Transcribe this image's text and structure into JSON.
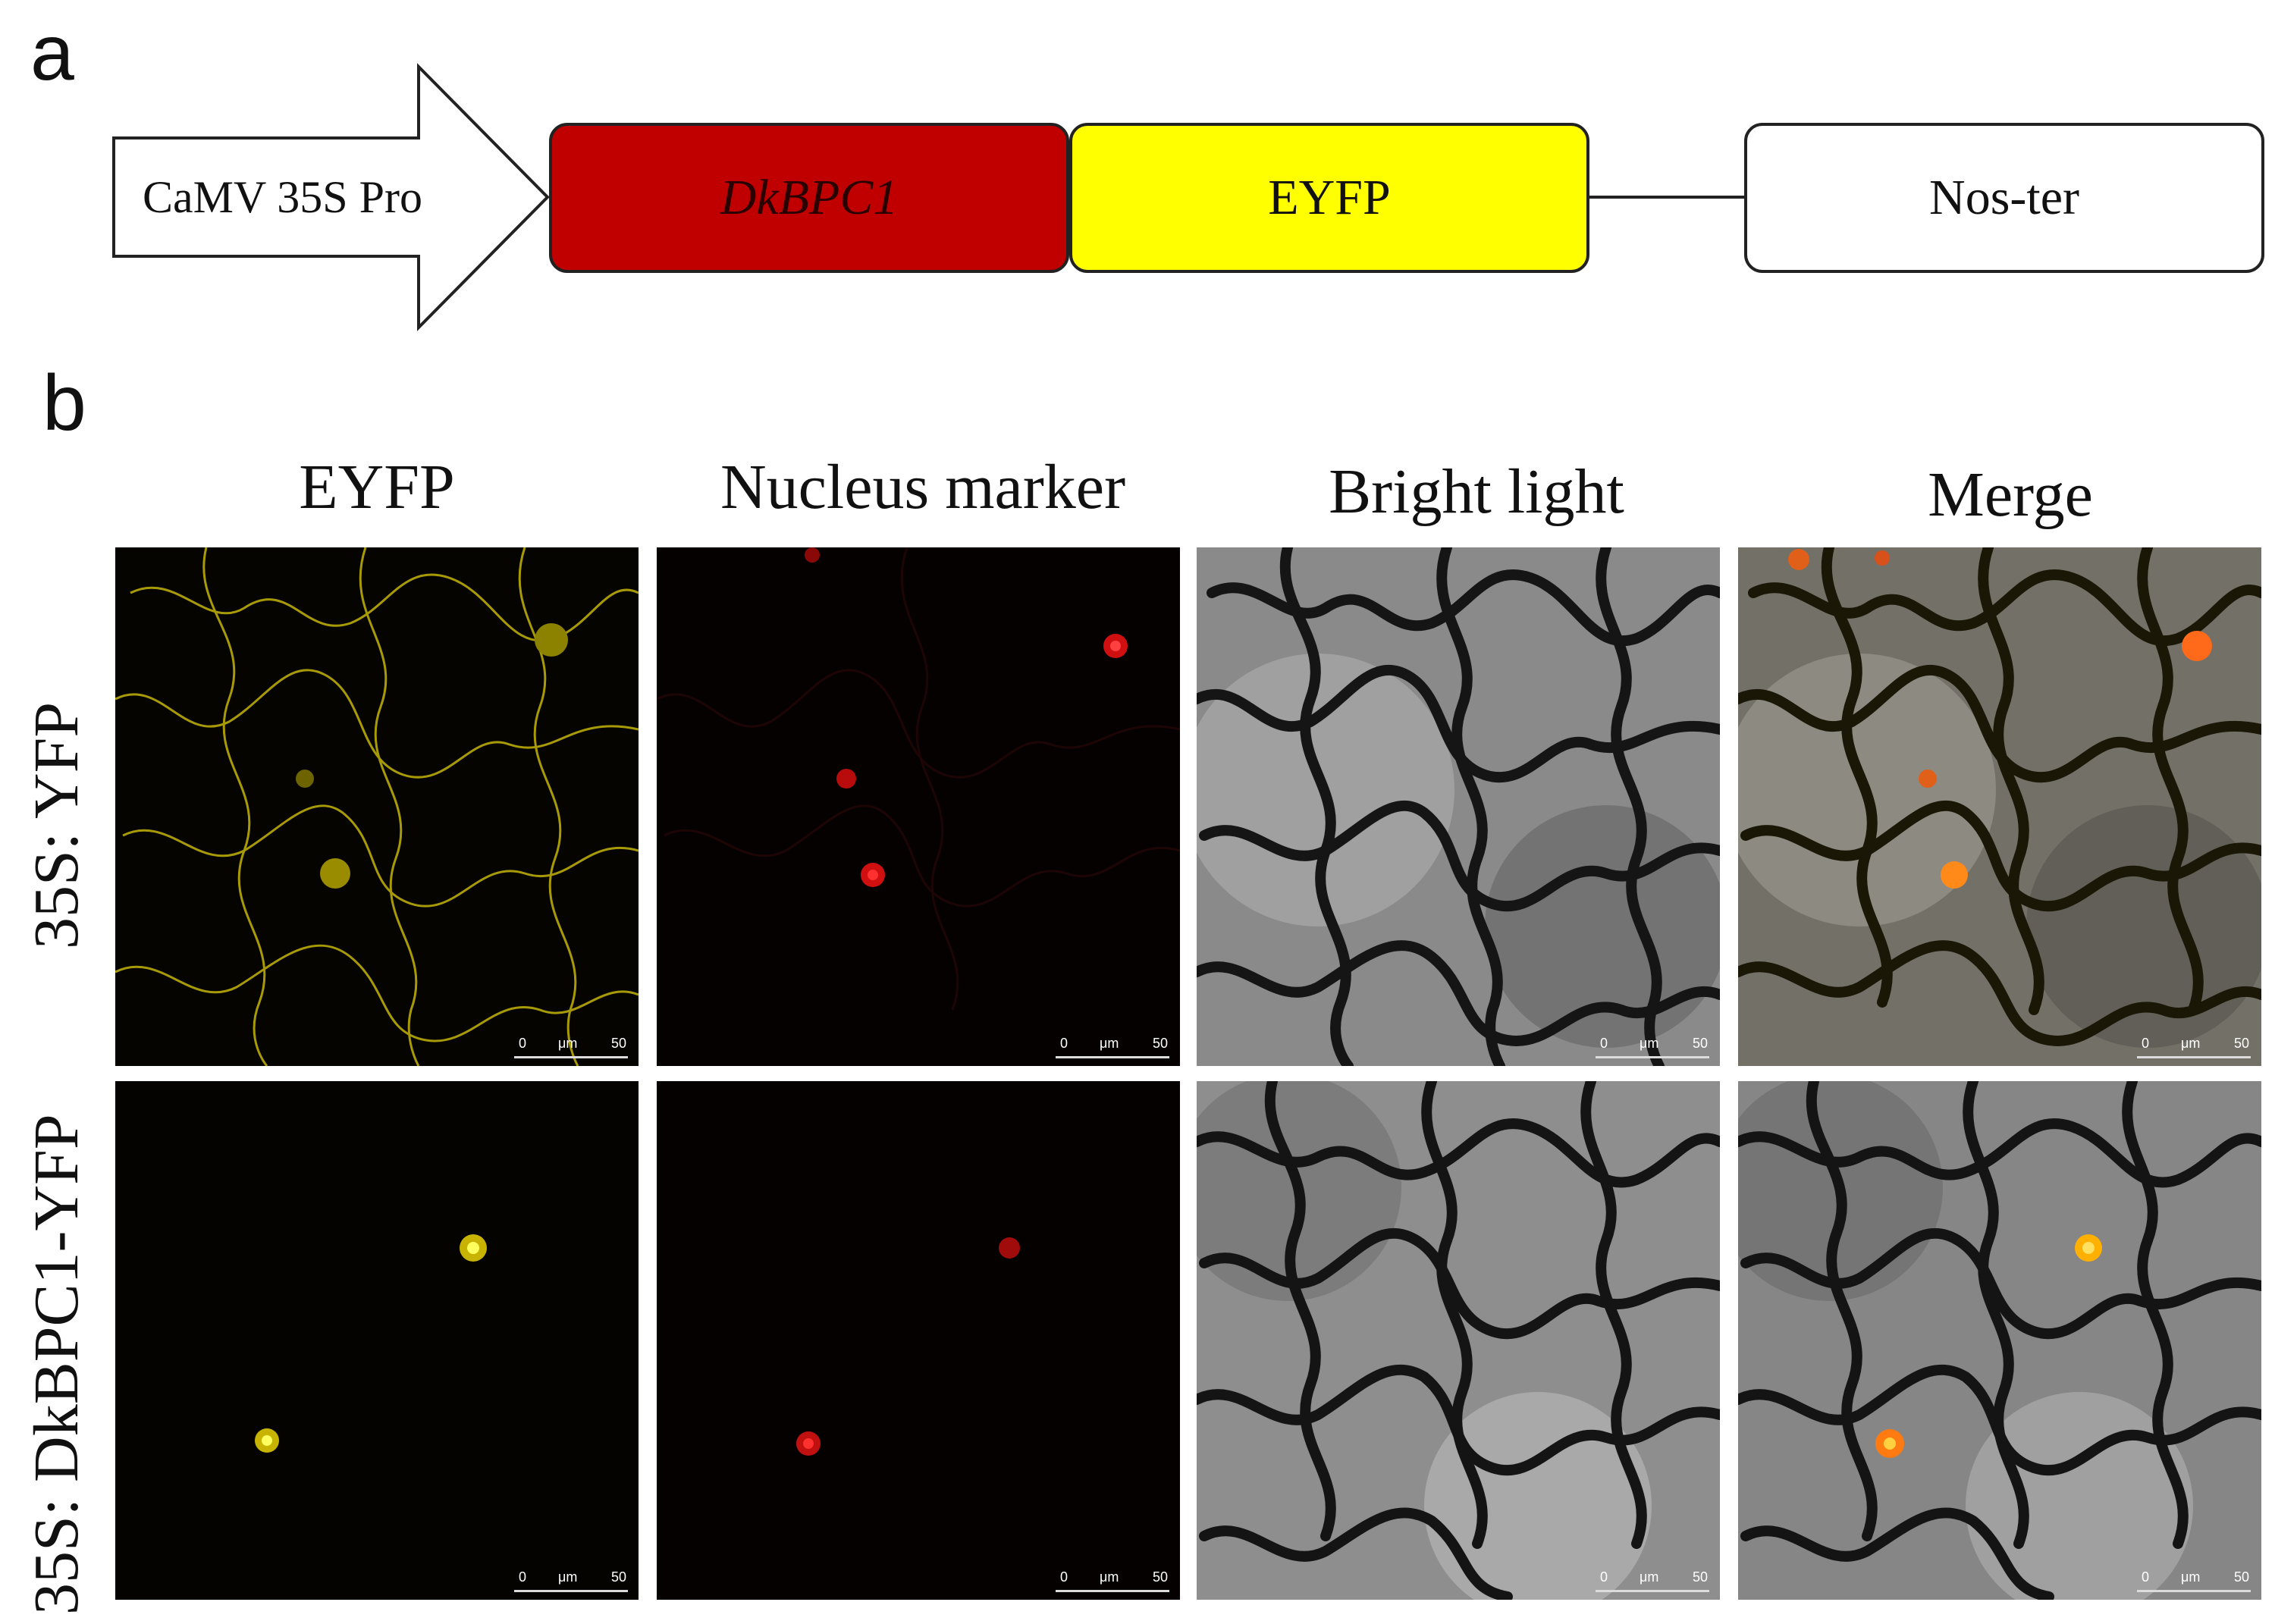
{
  "panels": {
    "a": "a",
    "b": "b"
  },
  "construct": {
    "promoter": "CaMV 35S Pro",
    "gene": "DkBPC1",
    "reporter": "EYFP",
    "terminator": "Nos-ter",
    "colors": {
      "gene": "#c00000",
      "reporter": "#ffff00",
      "terminator": "#ffffff",
      "promoter": "#ffffff"
    }
  },
  "grid": {
    "columns": [
      "EYFP",
      "Nucleus marker",
      "Bright light",
      "Merge"
    ],
    "rows": [
      "35S: YFP",
      "35S: DkBPC1-YFP"
    ],
    "scale_bar": {
      "start": "0",
      "unit": "μm",
      "end": "50"
    }
  }
}
